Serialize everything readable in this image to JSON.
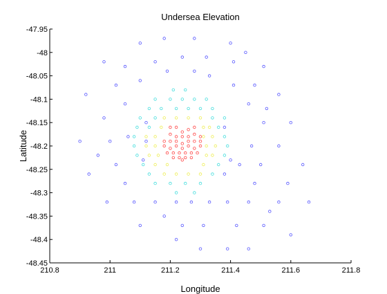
{
  "chart_data": {
    "type": "scatter",
    "title": "Undersea Elevation",
    "xlabel": "Longitude",
    "ylabel": "Latitude",
    "xlim": [
      210.8,
      211.8
    ],
    "ylim": [
      -48.45,
      -47.95
    ],
    "xticks": [
      "210.8",
      "211",
      "211.2",
      "211.4",
      "211.6",
      "211.8"
    ],
    "yticks": [
      "-47.95",
      "-48",
      "-48.05",
      "-48.1",
      "-48.15",
      "-48.2",
      "-48.25",
      "-48.3",
      "-48.35",
      "-48.4",
      "-48.45"
    ],
    "grid": false,
    "marker": "circle-open",
    "colors": {
      "deep": "#5555ff",
      "mid": "#44dddd",
      "shallow": "#eeee55",
      "peak": "#ff4444"
    },
    "series": [
      {
        "values_key": "deep",
        "points": [
          [
            211.18,
            -47.97
          ],
          [
            211.28,
            -47.97
          ],
          [
            211.1,
            -47.98
          ],
          [
            211.4,
            -47.98
          ],
          [
            211.45,
            -48.0
          ],
          [
            210.98,
            -48.02
          ],
          [
            211.24,
            -48.01
          ],
          [
            211.32,
            -48.01
          ],
          [
            211.15,
            -48.02
          ],
          [
            211.41,
            -48.02
          ],
          [
            211.05,
            -48.03
          ],
          [
            211.51,
            -48.03
          ],
          [
            211.19,
            -48.04
          ],
          [
            211.28,
            -48.04
          ],
          [
            211.33,
            -48.05
          ],
          [
            211.1,
            -48.06
          ],
          [
            211.48,
            -48.07
          ],
          [
            211.02,
            -48.07
          ],
          [
            211.41,
            -48.07
          ],
          [
            210.92,
            -48.09
          ],
          [
            211.56,
            -48.09
          ],
          [
            211.05,
            -48.11
          ],
          [
            211.46,
            -48.11
          ],
          [
            211.52,
            -48.12
          ],
          [
            210.98,
            -48.14
          ],
          [
            211.12,
            -48.15
          ],
          [
            211.51,
            -48.15
          ],
          [
            211.6,
            -48.15
          ],
          [
            211.38,
            -48.16
          ],
          [
            211.06,
            -48.18
          ],
          [
            210.9,
            -48.19
          ],
          [
            211.0,
            -48.19
          ],
          [
            211.12,
            -48.19
          ],
          [
            211.47,
            -48.2
          ],
          [
            211.56,
            -48.2
          ],
          [
            210.96,
            -48.22
          ],
          [
            211.11,
            -48.23
          ],
          [
            211.4,
            -48.23
          ],
          [
            211.02,
            -48.24
          ],
          [
            211.43,
            -48.24
          ],
          [
            211.5,
            -48.24
          ],
          [
            211.64,
            -48.24
          ],
          [
            210.93,
            -48.26
          ],
          [
            211.38,
            -48.26
          ],
          [
            211.05,
            -48.28
          ],
          [
            211.48,
            -48.28
          ],
          [
            211.59,
            -48.28
          ],
          [
            210.99,
            -48.32
          ],
          [
            211.08,
            -48.32
          ],
          [
            211.15,
            -48.32
          ],
          [
            211.22,
            -48.32
          ],
          [
            211.27,
            -48.32
          ],
          [
            211.33,
            -48.32
          ],
          [
            211.39,
            -48.32
          ],
          [
            211.46,
            -48.32
          ],
          [
            211.56,
            -48.32
          ],
          [
            211.66,
            -48.32
          ],
          [
            211.18,
            -48.35
          ],
          [
            211.53,
            -48.34
          ],
          [
            211.1,
            -48.37
          ],
          [
            211.24,
            -48.37
          ],
          [
            211.31,
            -48.37
          ],
          [
            211.42,
            -48.37
          ],
          [
            211.51,
            -48.37
          ],
          [
            211.6,
            -48.39
          ],
          [
            211.22,
            -48.4
          ],
          [
            211.3,
            -48.42
          ],
          [
            211.39,
            -48.42
          ],
          [
            211.46,
            -48.42
          ]
        ]
      },
      {
        "values_key": "mid",
        "points": [
          [
            211.21,
            -48.08
          ],
          [
            211.25,
            -48.08
          ],
          [
            211.15,
            -48.1
          ],
          [
            211.2,
            -48.1
          ],
          [
            211.24,
            -48.1
          ],
          [
            211.28,
            -48.1
          ],
          [
            211.32,
            -48.1
          ],
          [
            211.13,
            -48.12
          ],
          [
            211.17,
            -48.12
          ],
          [
            211.22,
            -48.12
          ],
          [
            211.26,
            -48.12
          ],
          [
            211.3,
            -48.12
          ],
          [
            211.34,
            -48.12
          ],
          [
            211.1,
            -48.14
          ],
          [
            211.15,
            -48.14
          ],
          [
            211.34,
            -48.14
          ],
          [
            211.38,
            -48.14
          ],
          [
            211.09,
            -48.16
          ],
          [
            211.13,
            -48.16
          ],
          [
            211.36,
            -48.16
          ],
          [
            211.08,
            -48.18
          ],
          [
            211.38,
            -48.18
          ],
          [
            211.08,
            -48.2
          ],
          [
            211.39,
            -48.2
          ],
          [
            211.09,
            -48.22
          ],
          [
            211.38,
            -48.22
          ],
          [
            211.11,
            -48.24
          ],
          [
            211.36,
            -48.24
          ],
          [
            211.13,
            -48.26
          ],
          [
            211.34,
            -48.26
          ],
          [
            211.15,
            -48.28
          ],
          [
            211.2,
            -48.28
          ],
          [
            211.25,
            -48.28
          ],
          [
            211.3,
            -48.28
          ],
          [
            211.22,
            -48.3
          ],
          [
            211.28,
            -48.3
          ]
        ]
      },
      {
        "values_key": "shallow",
        "points": [
          [
            211.18,
            -48.14
          ],
          [
            211.22,
            -48.14
          ],
          [
            211.26,
            -48.14
          ],
          [
            211.3,
            -48.14
          ],
          [
            211.17,
            -48.16
          ],
          [
            211.31,
            -48.16
          ],
          [
            211.33,
            -48.16
          ],
          [
            211.12,
            -48.18
          ],
          [
            211.15,
            -48.18
          ],
          [
            211.31,
            -48.18
          ],
          [
            211.34,
            -48.18
          ],
          [
            211.12,
            -48.2
          ],
          [
            211.15,
            -48.2
          ],
          [
            211.32,
            -48.2
          ],
          [
            211.35,
            -48.2
          ],
          [
            211.13,
            -48.22
          ],
          [
            211.16,
            -48.22
          ],
          [
            211.32,
            -48.22
          ],
          [
            211.34,
            -48.22
          ],
          [
            211.15,
            -48.24
          ],
          [
            211.19,
            -48.24
          ],
          [
            211.31,
            -48.24
          ],
          [
            211.18,
            -48.26
          ],
          [
            211.22,
            -48.26
          ],
          [
            211.26,
            -48.26
          ],
          [
            211.3,
            -48.26
          ]
        ]
      },
      {
        "values_key": "peak",
        "points": [
          [
            211.2,
            -48.16
          ],
          [
            211.22,
            -48.16
          ],
          [
            211.24,
            -48.17
          ],
          [
            211.26,
            -48.165
          ],
          [
            211.28,
            -48.16
          ],
          [
            211.2,
            -48.175
          ],
          [
            211.22,
            -48.18
          ],
          [
            211.24,
            -48.18
          ],
          [
            211.26,
            -48.18
          ],
          [
            211.28,
            -48.175
          ],
          [
            211.3,
            -48.18
          ],
          [
            211.18,
            -48.19
          ],
          [
            211.2,
            -48.19
          ],
          [
            211.22,
            -48.19
          ],
          [
            211.24,
            -48.195
          ],
          [
            211.26,
            -48.19
          ],
          [
            211.28,
            -48.19
          ],
          [
            211.3,
            -48.19
          ],
          [
            211.18,
            -48.2
          ],
          [
            211.2,
            -48.205
          ],
          [
            211.22,
            -48.2
          ],
          [
            211.24,
            -48.205
          ],
          [
            211.26,
            -48.2
          ],
          [
            211.28,
            -48.205
          ],
          [
            211.3,
            -48.2
          ],
          [
            211.19,
            -48.215
          ],
          [
            211.21,
            -48.215
          ],
          [
            211.23,
            -48.215
          ],
          [
            211.25,
            -48.215
          ],
          [
            211.27,
            -48.215
          ],
          [
            211.29,
            -48.215
          ],
          [
            211.21,
            -48.225
          ],
          [
            211.23,
            -48.225
          ],
          [
            211.25,
            -48.225
          ],
          [
            211.27,
            -48.225
          ],
          [
            211.24,
            -48.23
          ]
        ]
      }
    ]
  }
}
